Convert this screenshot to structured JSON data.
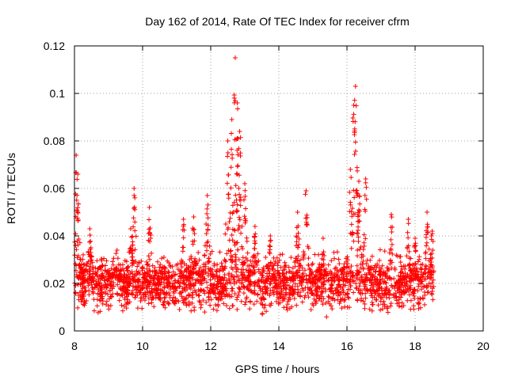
{
  "chart_data": {
    "type": "scatter",
    "title": "Day 162 of 2014, Rate Of TEC Index for receiver cfrm",
    "xlabel": "GPS time / hours",
    "ylabel": "ROTI / TECUs",
    "xlim": [
      8,
      20
    ],
    "ylim": [
      0,
      0.12
    ],
    "xticks": [
      8,
      10,
      12,
      14,
      16,
      18,
      20
    ],
    "xtick_labels": [
      "8",
      "10",
      "12",
      "14",
      "16",
      "18",
      "20"
    ],
    "yticks": [
      0,
      0.02,
      0.04,
      0.06,
      0.08,
      0.1,
      0.12
    ],
    "ytick_labels": [
      "0",
      "0.02",
      "0.04",
      "0.06",
      "0.08",
      "0.1",
      "0.12"
    ],
    "grid": true,
    "marker": "+",
    "color": "#ff0000",
    "data_x_range": [
      8.0,
      18.55
    ],
    "baseline_band": [
      0.005,
      0.035
    ],
    "series": [
      {
        "name": "ROTI",
        "peaks": [
          {
            "x": 8.05,
            "y": 0.074
          },
          {
            "x": 8.1,
            "y": 0.066
          },
          {
            "x": 8.45,
            "y": 0.043
          },
          {
            "x": 9.25,
            "y": 0.034
          },
          {
            "x": 9.65,
            "y": 0.043
          },
          {
            "x": 9.75,
            "y": 0.06
          },
          {
            "x": 10.2,
            "y": 0.052
          },
          {
            "x": 11.2,
            "y": 0.047
          },
          {
            "x": 11.5,
            "y": 0.048
          },
          {
            "x": 11.9,
            "y": 0.057
          },
          {
            "x": 12.5,
            "y": 0.08
          },
          {
            "x": 12.62,
            "y": 0.089
          },
          {
            "x": 12.72,
            "y": 0.115
          },
          {
            "x": 12.78,
            "y": 0.096
          },
          {
            "x": 12.85,
            "y": 0.084
          },
          {
            "x": 13.0,
            "y": 0.062
          },
          {
            "x": 13.3,
            "y": 0.044
          },
          {
            "x": 13.75,
            "y": 0.04
          },
          {
            "x": 14.55,
            "y": 0.05
          },
          {
            "x": 14.8,
            "y": 0.059
          },
          {
            "x": 15.3,
            "y": 0.039
          },
          {
            "x": 16.1,
            "y": 0.068
          },
          {
            "x": 16.2,
            "y": 0.095
          },
          {
            "x": 16.25,
            "y": 0.103
          },
          {
            "x": 16.35,
            "y": 0.063
          },
          {
            "x": 16.55,
            "y": 0.064
          },
          {
            "x": 17.3,
            "y": 0.049
          },
          {
            "x": 17.8,
            "y": 0.047
          },
          {
            "x": 18.0,
            "y": 0.039
          },
          {
            "x": 18.35,
            "y": 0.05
          },
          {
            "x": 18.5,
            "y": 0.042
          }
        ]
      }
    ]
  }
}
